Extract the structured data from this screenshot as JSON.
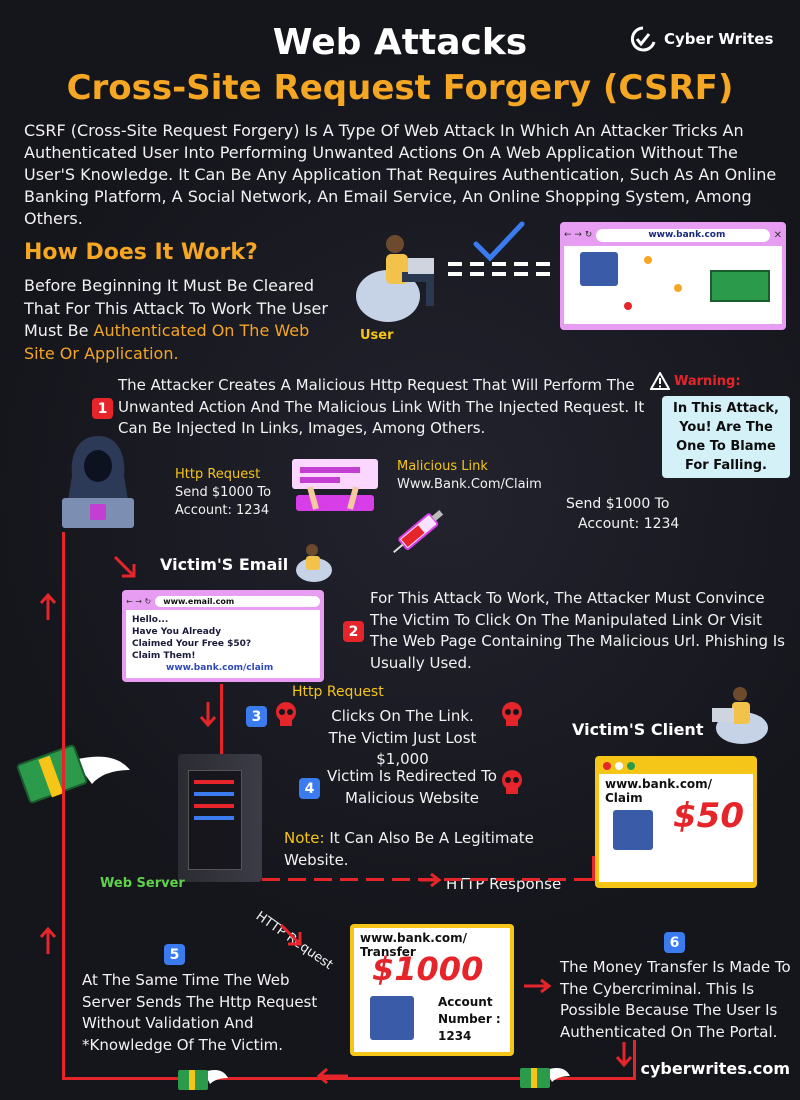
{
  "header": {
    "title": "Web Attacks",
    "subtitle": "Cross-Site Request Forgery (CSRF)",
    "brand": "Cyber Writes"
  },
  "intro": "CSRF (Cross-Site Request Forgery) Is A Type Of Web Attack In Which An Attacker Tricks An Authenticated User Into Performing Unwanted Actions On A Web Application Without The User'S Knowledge. It Can Be Any Application That Requires Authentication, Such As An Online Banking Platform, A Social Network, An Email Service, An Online Shopping System, Among Others.",
  "how": {
    "heading": "How Does It Work?",
    "text_before": "Before Beginning It Must Be Cleared That For This Attack To Work The User Must Be ",
    "text_highlight": "Authenticated On The Web Site Or Application.",
    "user_label": "User",
    "bank_url": "www.bank.com"
  },
  "steps": {
    "s1": {
      "num": "1",
      "text": "The Attacker Creates A Malicious Http Request That Will Perform The Unwanted Action And The Malicious Link With The Injected Request. It Can Be Injected In Links, Images, Among Others."
    },
    "s2": {
      "num": "2",
      "text": "For This Attack To Work, The Attacker Must Convince The Victim To Click On The Manipulated Link Or Visit The Web Page Containing The Malicious Url. Phishing Is Usually Used."
    },
    "s3": {
      "num": "3",
      "label": "Http Request",
      "text1": "Clicks On The Link.",
      "text2": "The Victim Just Lost $1,000"
    },
    "s4": {
      "num": "4",
      "text1": "Victim Is Redirected To",
      "text2": "Malicious Website",
      "note_label": "Note:",
      "note_text": " It Can Also Be A Legitimate Website."
    },
    "s5": {
      "num": "5",
      "text": "At The Same Time The Web Server Sends The Http Request Without Validation And *Knowledge Of The Victim."
    },
    "s6": {
      "num": "6",
      "text": "The Money Transfer Is Made To The Cybercriminal. This Is Possible Because The User Is Authenticated On The Portal."
    }
  },
  "warning": {
    "label": "Warning:",
    "box": "In This Attack, You! Are The One To Blame For Falling."
  },
  "http_request": {
    "label": "Http Request",
    "line1": "Send $1000 To",
    "line2": "Account: 1234"
  },
  "malicious_link": {
    "label": "Malicious Link",
    "url": "Www.Bank.Com/Claim"
  },
  "send_note": {
    "line1": "Send $1000 To",
    "line2": "Account: 1234"
  },
  "email": {
    "heading": "Victim'S Email",
    "url": "www.email.com",
    "lines": [
      "Hello...",
      "Have You Already",
      "Claimed Your Free $50?",
      "Claim Them!"
    ],
    "link": "www.bank.com/claim"
  },
  "client": {
    "heading": "Victim'S Client",
    "url": "www.bank.com/ Claim",
    "amount": "$50"
  },
  "server": {
    "label": "Web Server",
    "response": "HTTP Response",
    "request": "HTTP Request"
  },
  "transfer": {
    "url": "www.bank.com/ Transfer",
    "amount": "$1000",
    "account": "Account Number : 1234"
  },
  "footer": {
    "site": "cyberwrites.com"
  },
  "colors": {
    "accent": "#f5a623",
    "red": "#e5252a",
    "blue": "#3b7bf0",
    "browser": "#e79ef2"
  }
}
